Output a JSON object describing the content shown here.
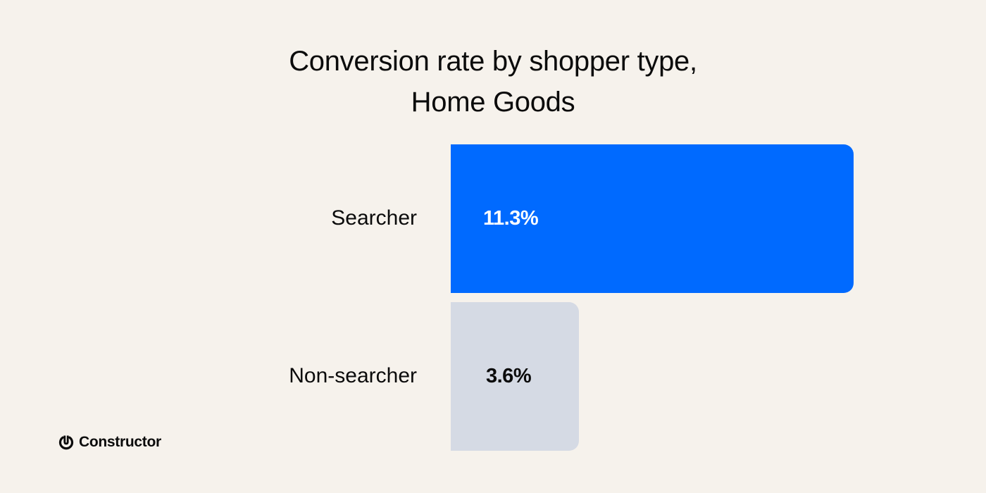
{
  "chart_data": {
    "type": "bar",
    "orientation": "horizontal",
    "title": "Conversion rate by shopper type,\nHome Goods",
    "title_lines": [
      "Conversion rate by shopper type,",
      "Home Goods"
    ],
    "categories": [
      "Searcher",
      "Non-searcher"
    ],
    "values": [
      11.3,
      3.6
    ],
    "value_labels": [
      "11.3%",
      "3.6%"
    ],
    "unit": "%",
    "colors": [
      "#006aff",
      "#d5dae4"
    ],
    "label_colors": [
      "#ffffff",
      "#0b0b0b"
    ],
    "xlabel": "",
    "ylabel": "",
    "xlim": [
      0,
      11.3
    ],
    "grid": false,
    "legend": "none"
  },
  "brand": {
    "name": "Constructor",
    "icon": "power-icon"
  },
  "background": "#f6f2ec"
}
